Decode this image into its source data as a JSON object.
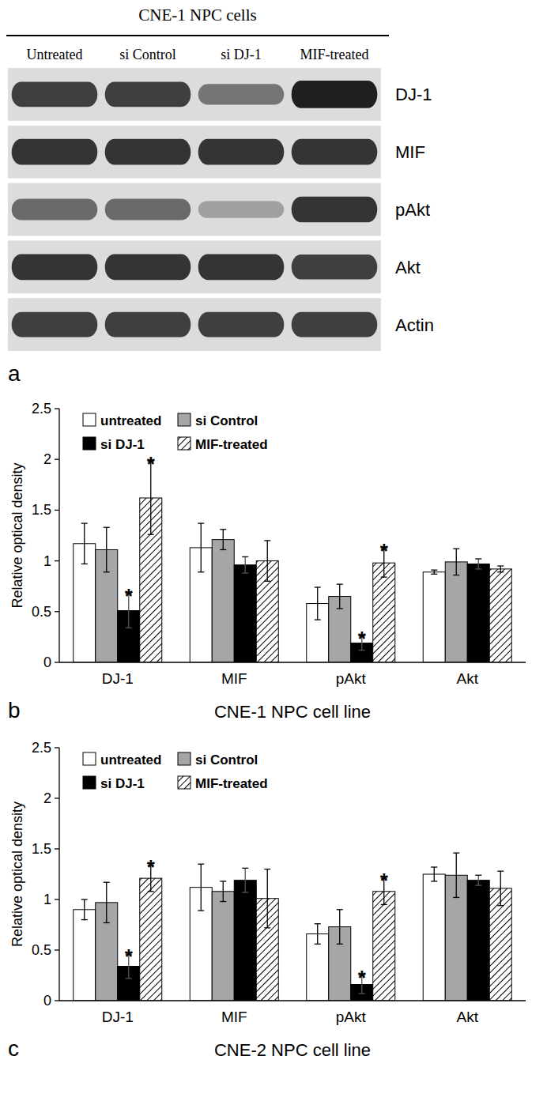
{
  "blot": {
    "panel": "a",
    "title": "CNE-1 NPC cells",
    "lanes": [
      "Untreated",
      "si Control",
      "si DJ-1",
      "MIF-treated"
    ],
    "rows": [
      {
        "label": "DJ-1",
        "intensities": [
          0.8,
          0.8,
          0.55,
          0.95
        ]
      },
      {
        "label": "MIF",
        "intensities": [
          0.85,
          0.85,
          0.85,
          0.85
        ]
      },
      {
        "label": "pAkt",
        "intensities": [
          0.6,
          0.6,
          0.35,
          0.85
        ]
      },
      {
        "label": "Akt",
        "intensities": [
          0.85,
          0.85,
          0.85,
          0.8
        ]
      },
      {
        "label": "Actin",
        "intensities": [
          0.8,
          0.8,
          0.8,
          0.8
        ]
      }
    ]
  },
  "chart_data": [
    {
      "type": "bar",
      "panel": "b",
      "xlabel": "CNE-1 NPC cell line",
      "ylabel": "Relative optical density",
      "categories": [
        "DJ-1",
        "MIF",
        "pAkt",
        "Akt"
      ],
      "ylim": [
        0,
        2.5
      ],
      "yticks": [
        0,
        0.5,
        1,
        1.5,
        2,
        2.5
      ],
      "grid": false,
      "legend": "top-left",
      "series": [
        {
          "name": "untreated",
          "color": "#ffffff",
          "values": [
            1.17,
            1.13,
            0.58,
            0.89
          ],
          "errors": [
            0.2,
            0.24,
            0.16,
            0.02
          ]
        },
        {
          "name": "si Control",
          "color": "#a6a6a6",
          "values": [
            1.11,
            1.21,
            0.65,
            0.99
          ],
          "errors": [
            0.22,
            0.1,
            0.12,
            0.13
          ]
        },
        {
          "name": "si DJ-1",
          "color": "#000000",
          "values": [
            0.51,
            0.96,
            0.19,
            0.97
          ],
          "errors": [
            0.17,
            0.08,
            0.07,
            0.05
          ]
        },
        {
          "name": "MIF-treated",
          "color": "#000000",
          "line_style": "hatch",
          "values": [
            1.62,
            1.0,
            0.98,
            0.92
          ],
          "errors": [
            0.36,
            0.2,
            0.14,
            0.03
          ]
        }
      ],
      "annotations": [
        {
          "text": "*",
          "series": 2,
          "category": 0
        },
        {
          "text": "*",
          "series": 3,
          "category": 0
        },
        {
          "text": "*",
          "series": 2,
          "category": 2
        },
        {
          "text": "*",
          "series": 3,
          "category": 2
        }
      ]
    },
    {
      "type": "bar",
      "panel": "c",
      "xlabel": "CNE-2 NPC cell line",
      "ylabel": "Relative optical density",
      "categories": [
        "DJ-1",
        "MIF",
        "pAkt",
        "Akt"
      ],
      "ylim": [
        0,
        2.5
      ],
      "yticks": [
        0,
        0.5,
        1,
        1.5,
        2,
        2.5
      ],
      "grid": false,
      "legend": "top-left",
      "series": [
        {
          "name": "untreated",
          "color": "#ffffff",
          "values": [
            0.9,
            1.12,
            0.66,
            1.25
          ],
          "errors": [
            0.1,
            0.23,
            0.1,
            0.07
          ]
        },
        {
          "name": "si Control",
          "color": "#a6a6a6",
          "values": [
            0.97,
            1.08,
            0.73,
            1.24
          ],
          "errors": [
            0.2,
            0.1,
            0.17,
            0.22
          ]
        },
        {
          "name": "si DJ-1",
          "color": "#000000",
          "values": [
            0.34,
            1.19,
            0.16,
            1.19
          ],
          "errors": [
            0.12,
            0.12,
            0.09,
            0.05
          ]
        },
        {
          "name": "MIF-treated",
          "color": "#000000",
          "line_style": "hatch",
          "values": [
            1.21,
            1.01,
            1.08,
            1.11
          ],
          "errors": [
            0.13,
            0.29,
            0.13,
            0.17
          ]
        }
      ],
      "annotations": [
        {
          "text": "*",
          "series": 2,
          "category": 0
        },
        {
          "text": "*",
          "series": 3,
          "category": 0
        },
        {
          "text": "*",
          "series": 2,
          "category": 2
        },
        {
          "text": "*",
          "series": 3,
          "category": 2
        }
      ]
    }
  ]
}
